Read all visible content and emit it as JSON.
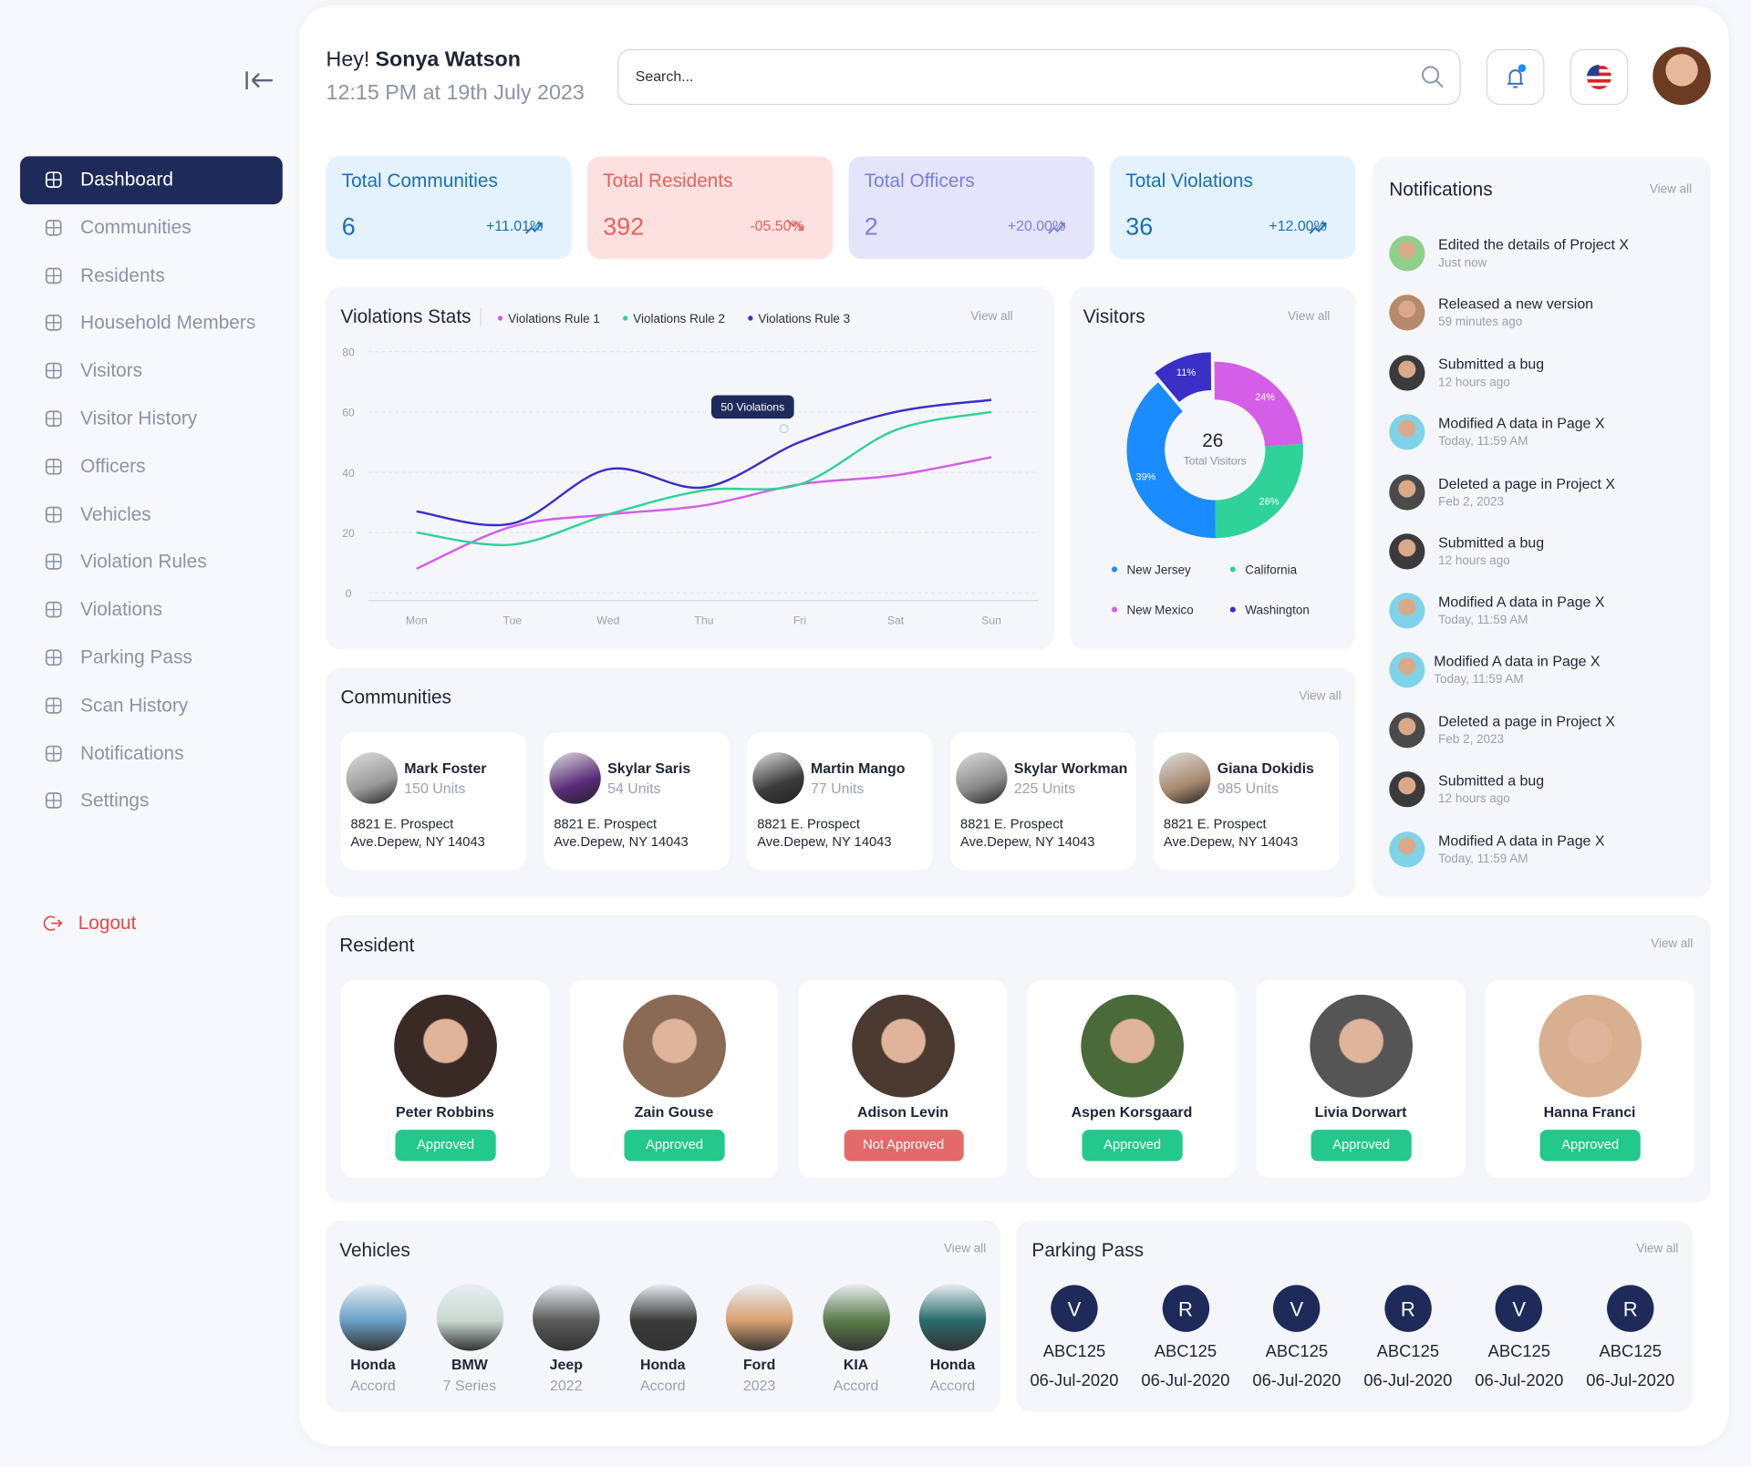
{
  "sidebar": {
    "nav": [
      "Dashboard",
      "Communities",
      "Residents",
      "Household Members",
      "Visitors",
      "Visitor History",
      "Officers",
      "Vehicles",
      "Violation Rules",
      "Violations",
      "Parking Pass",
      "Scan History",
      "Notifications",
      "Settings"
    ],
    "active": 0,
    "logout": "Logout"
  },
  "header": {
    "greeting": "Hey!",
    "name": "Sonya Watson",
    "datetime": "12:15 PM at 19th July 2023",
    "search_placeholder": "Search..."
  },
  "stats": [
    {
      "title": "Total Communities",
      "value": 6,
      "change": "+11.01%",
      "trend": "up"
    },
    {
      "title": "Total Residents",
      "value": 392,
      "change": "-05.50%",
      "trend": "down"
    },
    {
      "title": "Total Officers",
      "value": 2,
      "change": "+20.00%",
      "trend": "up"
    },
    {
      "title": "Total Violations",
      "value": 36,
      "change": "+12.00%",
      "trend": "up"
    }
  ],
  "chart_data": [
    {
      "type": "line",
      "title": "Violations Stats",
      "view_all": "View all",
      "tooltip": "50 Violations",
      "categories": [
        "Mon",
        "Tue",
        "Wed",
        "Thu",
        "Fri",
        "Sat",
        "Sun"
      ],
      "series": [
        {
          "name": "Violations Rule 1",
          "color": "#d45ee8",
          "values": [
            8,
            22,
            26,
            29,
            36,
            39,
            45
          ]
        },
        {
          "name": "Violations Rule 2",
          "color": "#2fd39a",
          "values": [
            20,
            16,
            26,
            34,
            36,
            54,
            60
          ]
        },
        {
          "name": "Violations Rule 3",
          "color": "#3a2fc7",
          "values": [
            27,
            23,
            41,
            35,
            50,
            60,
            64
          ]
        }
      ],
      "ylim": [
        0,
        80
      ],
      "yticks": [
        0,
        20,
        40,
        60,
        80
      ],
      "grid": true
    },
    {
      "type": "pie",
      "title": "Visitors",
      "view_all": "View all",
      "center_value": 26,
      "center_label": "Total Visitors",
      "categories": [
        "New Jersey",
        "California",
        "New Mexico",
        "Washington"
      ],
      "values": [
        39,
        26,
        24,
        11
      ],
      "value_labels": [
        "39%",
        "26%",
        "24%",
        "11%"
      ],
      "colors": [
        "#1a8cff",
        "#2fd39a",
        "#d45ee8",
        "#3a2fc7"
      ]
    }
  ],
  "notifications": {
    "title": "Notifications",
    "view_all": "View all",
    "items": [
      {
        "text": "Edited the details of Project X",
        "time": "Just now"
      },
      {
        "text": "Released a new version",
        "time": "59 minutes ago"
      },
      {
        "text": "Submitted a bug",
        "time": "12 hours ago"
      },
      {
        "text": "Modified A data in Page X",
        "time": "Today, 11:59 AM"
      },
      {
        "text": "Deleted a page in Project X",
        "time": "Feb 2, 2023"
      },
      {
        "text": "Submitted a bug",
        "time": "12 hours ago"
      },
      {
        "text": "Modified A data in Page X",
        "time": "Today, 11:59 AM"
      },
      {
        "text": "Modified A data in Page X",
        "time": "Today, 11:59 AM"
      },
      {
        "text": "Deleted a page in Project X",
        "time": "Feb 2, 2023"
      },
      {
        "text": "Submitted a bug",
        "time": "12 hours ago"
      },
      {
        "text": "Modified A data in Page X",
        "time": "Today, 11:59 AM"
      }
    ]
  },
  "communities": {
    "title": "Communities",
    "view_all": "View all",
    "items": [
      {
        "name": "Mark Foster",
        "units": "150 Units",
        "address": "8821 E. Prospect Ave.Depew, NY 14043"
      },
      {
        "name": "Skylar Saris",
        "units": "54 Units",
        "address": "8821 E. Prospect Ave.Depew, NY 14043"
      },
      {
        "name": "Martin Mango",
        "units": "77 Units",
        "address": "8821 E. Prospect Ave.Depew, NY 14043"
      },
      {
        "name": "Skylar Workman",
        "units": "225 Units",
        "address": "8821 E. Prospect Ave.Depew, NY 14043"
      },
      {
        "name": "Giana Dokidis",
        "units": "985 Units",
        "address": "8821 E. Prospect Ave.Depew, NY 14043"
      }
    ]
  },
  "residents": {
    "title": "Resident",
    "view_all": "View all",
    "items": [
      {
        "name": "Peter Robbins",
        "status": "Approved"
      },
      {
        "name": "Zain Gouse",
        "status": "Approved"
      },
      {
        "name": "Adison Levin",
        "status": "Not Approved"
      },
      {
        "name": "Aspen Korsgaard",
        "status": "Approved"
      },
      {
        "name": "Livia Dorwart",
        "status": "Approved"
      },
      {
        "name": "Hanna Franci",
        "status": "Approved"
      }
    ]
  },
  "vehicles": {
    "title": "Vehicles",
    "view_all": "View all",
    "items": [
      {
        "make": "Honda",
        "model": "Accord"
      },
      {
        "make": "BMW",
        "model": "7 Series"
      },
      {
        "make": "Jeep",
        "model": "2022"
      },
      {
        "make": "Honda",
        "model": "Accord"
      },
      {
        "make": "Ford",
        "model": "2023"
      },
      {
        "make": "KIA",
        "model": "Accord"
      },
      {
        "make": "Honda",
        "model": "Accord"
      }
    ]
  },
  "parking": {
    "title": "Parking Pass",
    "view_all": "View all",
    "items": [
      {
        "letter": "V",
        "code": "ABC125",
        "date": "06-Jul-2020"
      },
      {
        "letter": "R",
        "code": "ABC125",
        "date": "06-Jul-2020"
      },
      {
        "letter": "V",
        "code": "ABC125",
        "date": "06-Jul-2020"
      },
      {
        "letter": "R",
        "code": "ABC125",
        "date": "06-Jul-2020"
      },
      {
        "letter": "V",
        "code": "ABC125",
        "date": "06-Jul-2020"
      },
      {
        "letter": "R",
        "code": "ABC125",
        "date": "06-Jul-2020"
      }
    ]
  }
}
